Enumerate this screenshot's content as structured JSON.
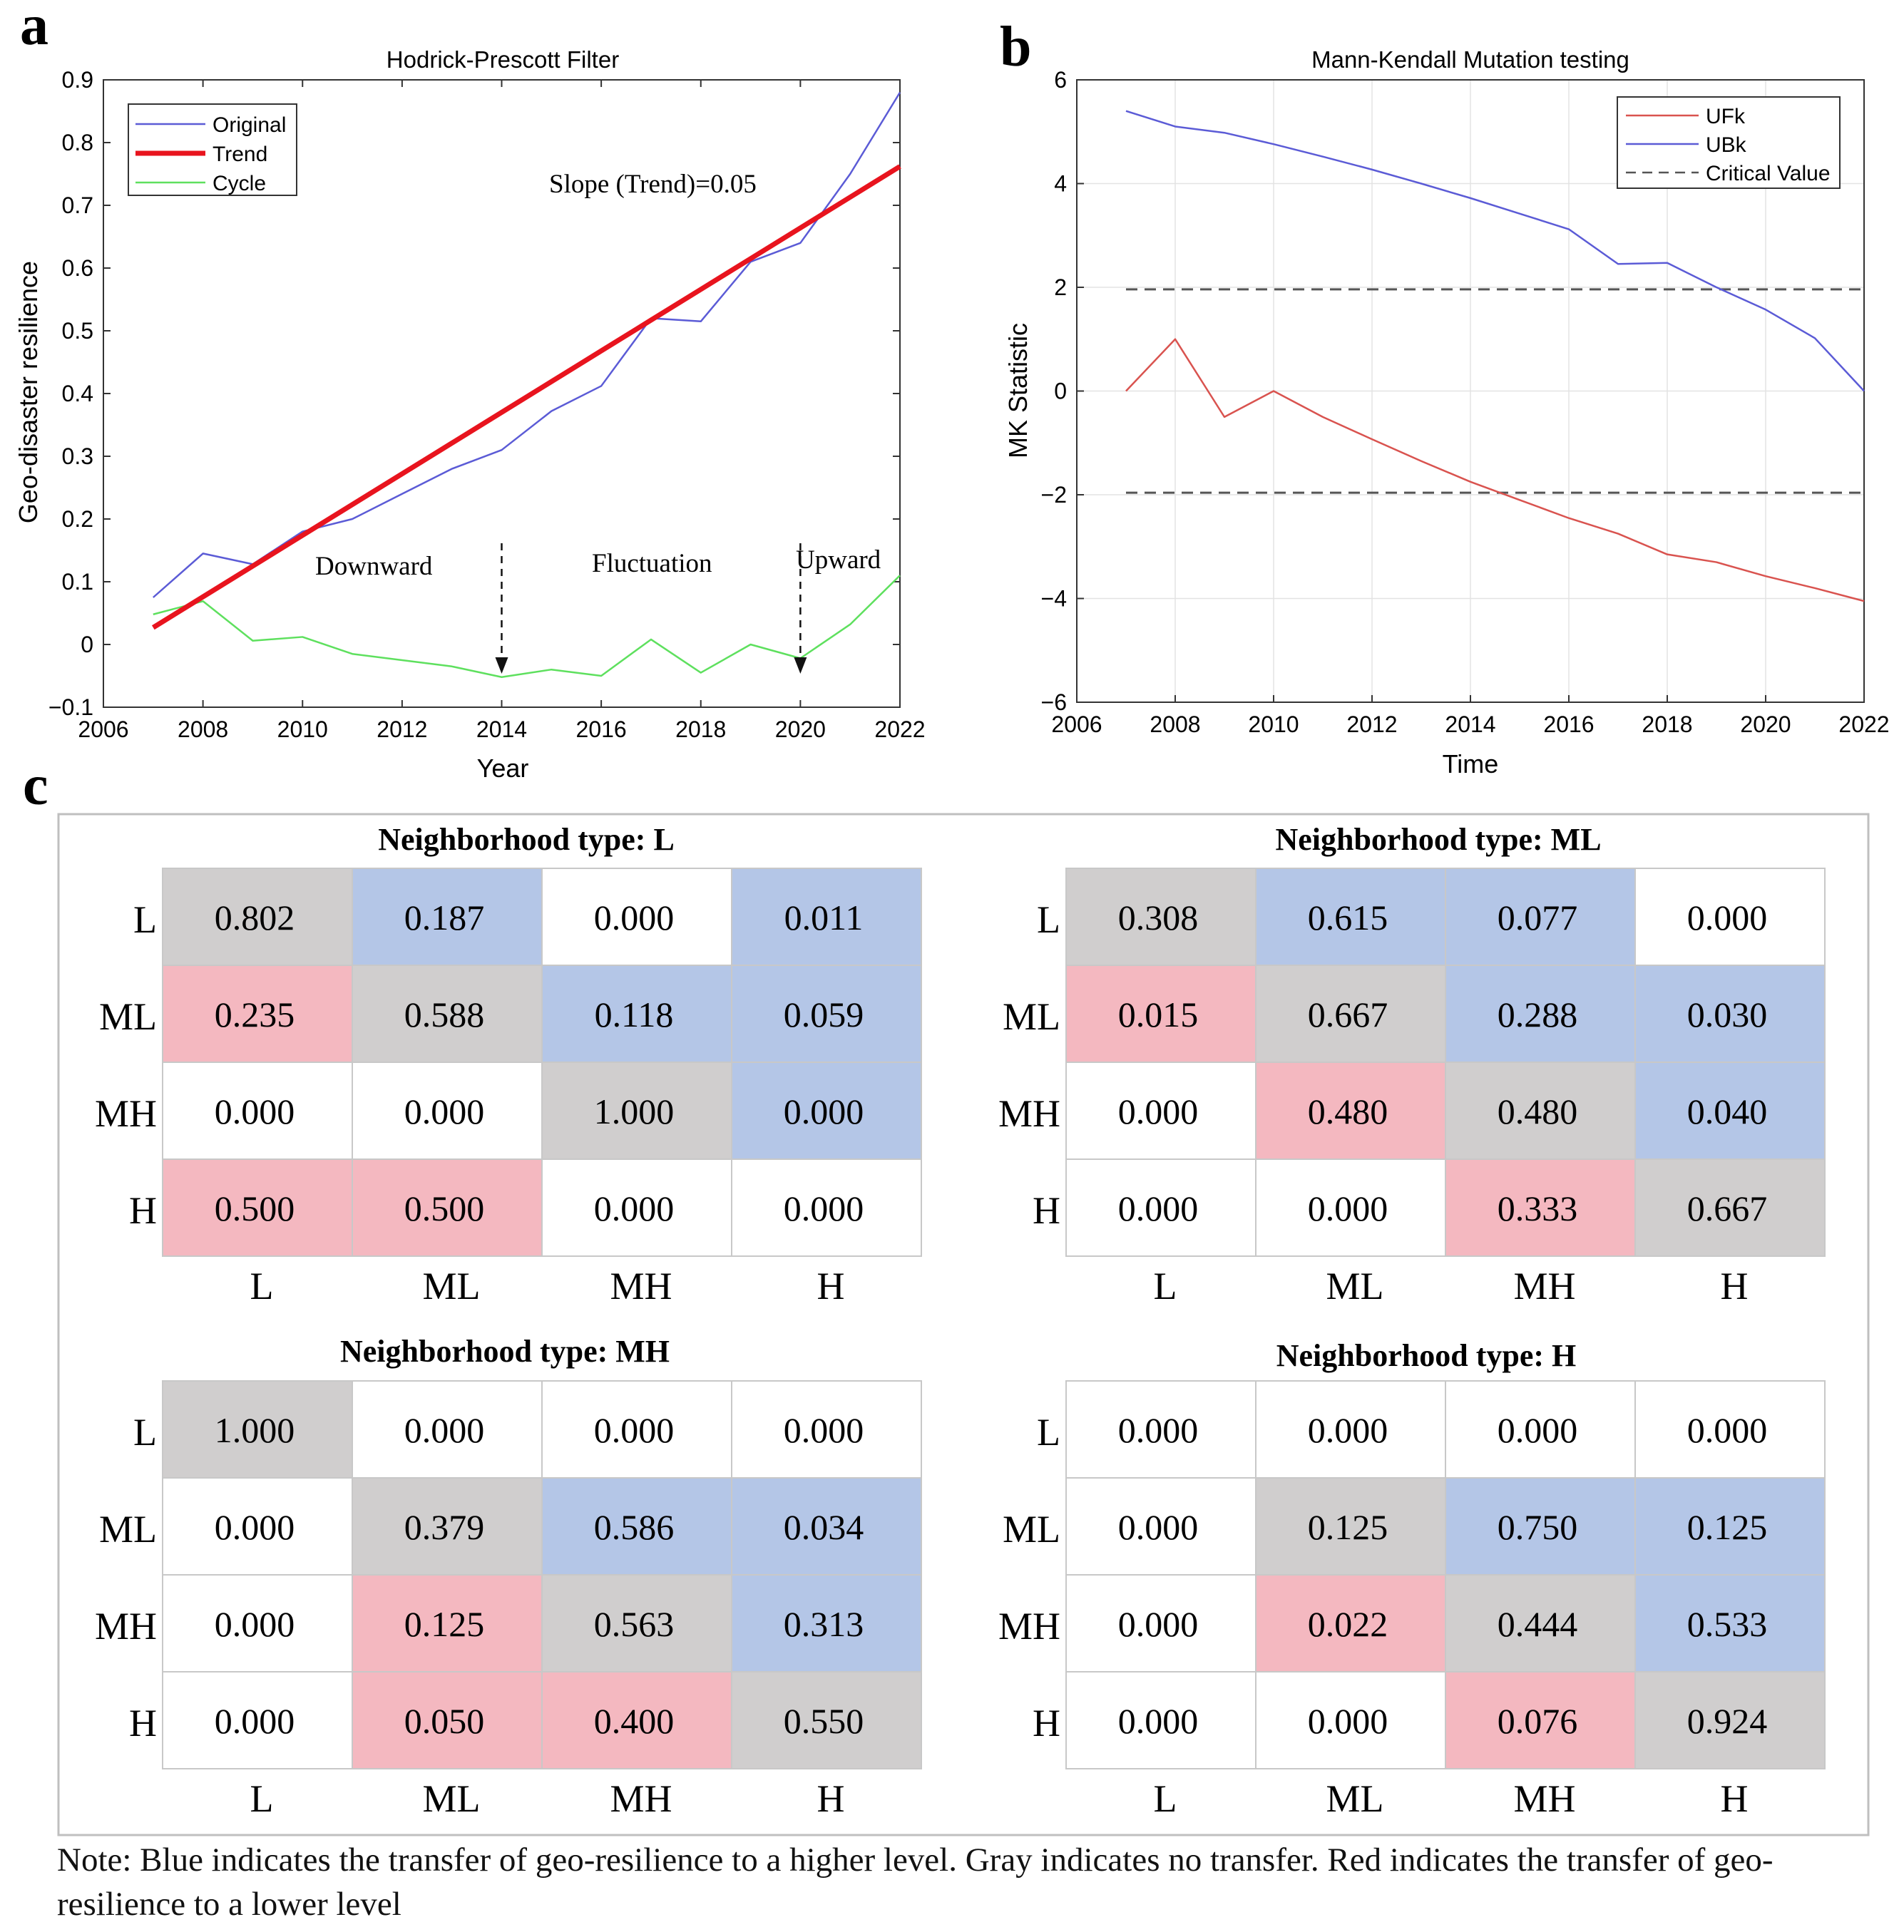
{
  "panels": {
    "a": "a",
    "b": "b",
    "c": "c"
  },
  "chart_data": [
    {
      "id": "a",
      "type": "line",
      "title": "Hodrick-Prescott Filter",
      "xlabel": "Year",
      "ylabel": "Geo-disaster resilience",
      "xlim": [
        2006,
        2022
      ],
      "ylim": [
        -0.1,
        0.9
      ],
      "xticks": [
        "2006",
        "2008",
        "2010",
        "2012",
        "2014",
        "2016",
        "2018",
        "2020",
        "2022"
      ],
      "yticks": [
        "−0.1",
        "0",
        "0.1",
        "0.2",
        "0.3",
        "0.4",
        "0.5",
        "0.6",
        "0.7",
        "0.8",
        "0.9"
      ],
      "x": [
        2007,
        2008,
        2009,
        2010,
        2011,
        2012,
        2013,
        2014,
        2015,
        2016,
        2017,
        2018,
        2019,
        2020,
        2021,
        2022
      ],
      "series": [
        {
          "name": "Original",
          "color": "#5b5bd6",
          "values": [
            0.075,
            0.145,
            0.128,
            0.18,
            0.2,
            0.24,
            0.28,
            0.31,
            0.372,
            0.412,
            0.52,
            0.515,
            0.61,
            0.64,
            0.75,
            0.88
          ]
        },
        {
          "name": "Trend",
          "color": "#e8141e",
          "values": [
            0.027,
            0.076,
            0.125,
            0.174,
            0.223,
            0.272,
            0.321,
            0.37,
            0.419,
            0.468,
            0.517,
            0.566,
            0.615,
            0.664,
            0.713,
            0.762
          ]
        },
        {
          "name": "Cycle",
          "color": "#5ee05e",
          "values": [
            0.048,
            0.069,
            0.006,
            0.012,
            -0.015,
            -0.025,
            -0.035,
            -0.052,
            -0.04,
            -0.05,
            0.008,
            -0.045,
            0.0,
            -0.022,
            0.032,
            0.11
          ]
        }
      ],
      "annotations": {
        "slope": "Slope (Trend)=0.05",
        "downward": "Downward",
        "fluctuation": "Fluctuation",
        "upward": "Upward"
      },
      "arrows_at": [
        2014,
        2020
      ],
      "legend": "top-left"
    },
    {
      "id": "b",
      "type": "line",
      "title": "Mann-Kendall Mutation testing",
      "xlabel": "Time",
      "ylabel": "MK Statistic",
      "xlim": [
        2006,
        2022
      ],
      "ylim": [
        -6,
        6
      ],
      "xticks": [
        "2006",
        "2008",
        "2010",
        "2012",
        "2014",
        "2016",
        "2018",
        "2020",
        "2022"
      ],
      "yticks": [
        "−6",
        "−4",
        "−2",
        "0",
        "2",
        "4",
        "6"
      ],
      "grid": true,
      "x": [
        2007,
        2008,
        2009,
        2010,
        2011,
        2012,
        2013,
        2014,
        2015,
        2016,
        2017,
        2018,
        2019,
        2020,
        2021,
        2022
      ],
      "series": [
        {
          "name": "UFk",
          "color": "#d9534f",
          "values": [
            0.0,
            1.0,
            -0.5,
            0.0,
            -0.5,
            -0.93,
            -1.35,
            -1.75,
            -2.1,
            -2.45,
            -2.75,
            -3.15,
            -3.3,
            -3.57,
            -3.8,
            -4.05
          ]
        },
        {
          "name": "UBk",
          "color": "#5b5bd6",
          "values": [
            5.4,
            5.1,
            4.98,
            4.76,
            4.52,
            4.27,
            4.0,
            3.72,
            3.42,
            3.12,
            2.45,
            2.47,
            2.0,
            1.57,
            1.02,
            0.0
          ]
        },
        {
          "name": "Critical Value",
          "color": "#555555",
          "dashed": true,
          "levels": [
            1.96,
            -1.96
          ]
        }
      ],
      "legend": "top-right"
    }
  ],
  "matrices": [
    {
      "title": "Neighborhood type: L",
      "rows": [
        "L",
        "ML",
        "MH",
        "H"
      ],
      "cols": [
        "L",
        "ML",
        "MH",
        "H"
      ],
      "values": [
        [
          "0.802",
          "0.187",
          "0.000",
          "0.011"
        ],
        [
          "0.235",
          "0.588",
          "0.118",
          "0.059"
        ],
        [
          "0.000",
          "0.000",
          "1.000",
          "0.000"
        ],
        [
          "0.500",
          "0.500",
          "0.000",
          "0.000"
        ]
      ],
      "colors": [
        [
          "g",
          "b",
          "w",
          "b"
        ],
        [
          "r",
          "g",
          "b",
          "b"
        ],
        [
          "w",
          "w",
          "g",
          "b"
        ],
        [
          "r",
          "r",
          "w",
          "w"
        ]
      ]
    },
    {
      "title": "Neighborhood type: ML",
      "rows": [
        "L",
        "ML",
        "MH",
        "H"
      ],
      "cols": [
        "L",
        "ML",
        "MH",
        "H"
      ],
      "values": [
        [
          "0.308",
          "0.615",
          "0.077",
          "0.000"
        ],
        [
          "0.015",
          "0.667",
          "0.288",
          "0.030"
        ],
        [
          "0.000",
          "0.480",
          "0.480",
          "0.040"
        ],
        [
          "0.000",
          "0.000",
          "0.333",
          "0.667"
        ]
      ],
      "colors": [
        [
          "g",
          "b",
          "b",
          "w"
        ],
        [
          "r",
          "g",
          "b",
          "b"
        ],
        [
          "w",
          "r",
          "g",
          "b"
        ],
        [
          "w",
          "w",
          "r",
          "g"
        ]
      ]
    },
    {
      "title": "Neighborhood type: MH",
      "rows": [
        "L",
        "ML",
        "MH",
        "H"
      ],
      "cols": [
        "L",
        "ML",
        "MH",
        "H"
      ],
      "values": [
        [
          "1.000",
          "0.000",
          "0.000",
          "0.000"
        ],
        [
          "0.000",
          "0.379",
          "0.586",
          "0.034"
        ],
        [
          "0.000",
          "0.125",
          "0.563",
          "0.313"
        ],
        [
          "0.000",
          "0.050",
          "0.400",
          "0.550"
        ]
      ],
      "colors": [
        [
          "g",
          "w",
          "w",
          "w"
        ],
        [
          "w",
          "g",
          "b",
          "b"
        ],
        [
          "w",
          "r",
          "g",
          "b"
        ],
        [
          "w",
          "r",
          "r",
          "g"
        ]
      ]
    },
    {
      "title": "Neighborhood type: H",
      "rows": [
        "L",
        "ML",
        "MH",
        "H"
      ],
      "cols": [
        "L",
        "ML",
        "MH",
        "H"
      ],
      "values": [
        [
          "0.000",
          "0.000",
          "0.000",
          "0.000"
        ],
        [
          "0.000",
          "0.125",
          "0.750",
          "0.125"
        ],
        [
          "0.000",
          "0.022",
          "0.444",
          "0.533"
        ],
        [
          "0.000",
          "0.000",
          "0.076",
          "0.924"
        ]
      ],
      "colors": [
        [
          "w",
          "w",
          "w",
          "w"
        ],
        [
          "w",
          "g",
          "b",
          "b"
        ],
        [
          "w",
          "r",
          "g",
          "b"
        ],
        [
          "w",
          "w",
          "r",
          "g"
        ]
      ]
    }
  ],
  "cell_colors": {
    "b": "#b4c6e7",
    "g": "#d0cece",
    "r": "#f4b8c0",
    "w": "#ffffff"
  },
  "note": "Note: Blue indicates the transfer of geo-resilience to a higher level. Gray indicates no transfer. Red indicates the transfer of geo-resilience to a lower level"
}
